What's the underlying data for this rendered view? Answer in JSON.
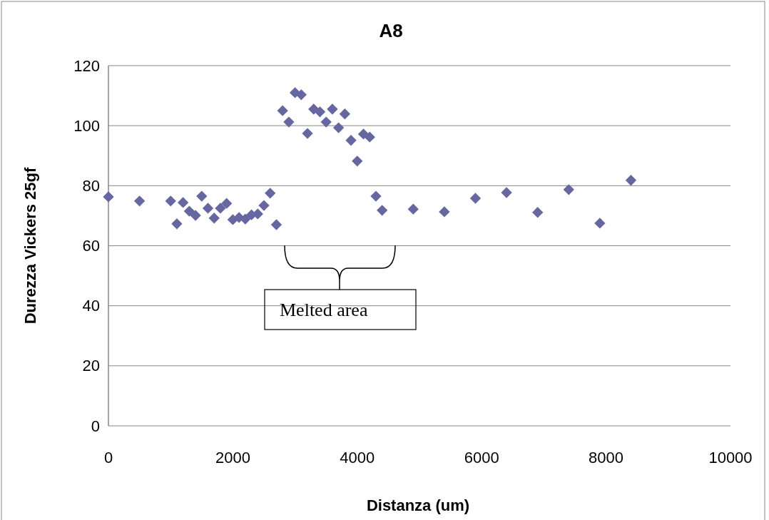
{
  "chart_data": {
    "type": "scatter",
    "title": "A8",
    "xlabel": "Distanza (um)",
    "ylabel": "Durezza Vickers 25gf",
    "x": [
      0,
      500,
      1000,
      1100,
      1200,
      1300,
      1400,
      1500,
      1600,
      1700,
      1800,
      1900,
      2000,
      2100,
      2200,
      2300,
      2400,
      2500,
      2600,
      2700,
      2800,
      2900,
      3000,
      3100,
      3200,
      3300,
      3400,
      3500,
      3600,
      3700,
      3800,
      3900,
      4000,
      4100,
      4200,
      4300,
      4400,
      4900,
      5400,
      5900,
      6400,
      6900,
      7400,
      7900,
      8400
    ],
    "series": [
      {
        "color": "#6667a0",
        "values": [
          76.3,
          74.9,
          74.9,
          67.3,
          74.4,
          71.5,
          70.1,
          76.5,
          72.5,
          69.2,
          72.5,
          74.1,
          68.7,
          69.4,
          68.9,
          70.3,
          70.6,
          73.4,
          77.5,
          67.0,
          105.0,
          101.2,
          111.0,
          110.3,
          97.4,
          105.5,
          104.6,
          101.2,
          105.5,
          99.3,
          103.9,
          95.1,
          88.2,
          97.2,
          96.2,
          76.5,
          71.8,
          72.2,
          71.3,
          75.8,
          77.7,
          71.1,
          78.7,
          67.5,
          81.8
        ]
      }
    ],
    "xlim": [
      0,
      10000
    ],
    "xticks": [
      0,
      2000,
      4000,
      6000,
      8000,
      10000
    ],
    "ylim": [
      0,
      120
    ],
    "yticks": [
      0,
      20,
      40,
      60,
      80,
      100,
      120
    ],
    "grid": "y",
    "marker": "diamond",
    "annotations": [
      "Melted area"
    ]
  }
}
